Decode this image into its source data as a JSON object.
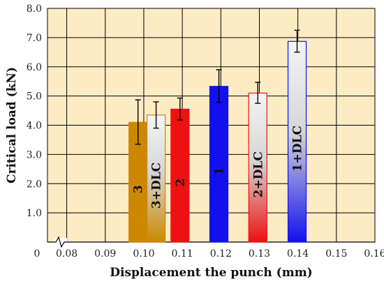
{
  "chart_data": {
    "type": "bar",
    "title": "",
    "xlabel": "Displacement the punch (mm)",
    "ylabel": "Critical load (kN)",
    "ylim": [
      0,
      8.0
    ],
    "xlim": [
      0.075,
      0.16
    ],
    "grid": true,
    "x_origin_label": "0",
    "x_ticks": [
      "0.08",
      "0.09",
      "0.10",
      "0.11",
      "0.12",
      "0.13",
      "0.14",
      "0.15",
      "0.16"
    ],
    "y_ticks": [
      "1.0",
      "2.0",
      "3.0",
      "4.0",
      "5.0",
      "6.0",
      "7.0",
      "8.0"
    ],
    "categories": [
      "3",
      "3+DLC",
      "2",
      "1",
      "2+DLC",
      "1+DLC"
    ],
    "bars": [
      {
        "label": "3",
        "x": 0.0985,
        "value": 4.1,
        "err_low": 3.35,
        "err_high": 4.87,
        "style": "solid",
        "color": "#cc8800"
      },
      {
        "label": "3+DLC",
        "x": 0.1032,
        "value": 4.35,
        "err_low": 3.9,
        "err_high": 4.8,
        "style": "gradient",
        "color": "#cc8800"
      },
      {
        "label": "2",
        "x": 0.1094,
        "value": 4.55,
        "err_low": 4.18,
        "err_high": 4.93,
        "style": "solid",
        "color": "#ee1111"
      },
      {
        "label": "1",
        "x": 0.1195,
        "value": 5.33,
        "err_low": 4.78,
        "err_high": 5.9,
        "style": "solid",
        "color": "#1111ee"
      },
      {
        "label": "2+DLC",
        "x": 0.1296,
        "value": 5.1,
        "err_low": 4.75,
        "err_high": 5.47,
        "style": "gradient",
        "color": "#ee1111"
      },
      {
        "label": "1+DLC",
        "x": 0.1398,
        "value": 6.87,
        "err_low": 6.5,
        "err_high": 7.25,
        "style": "gradient",
        "color": "#1111ee"
      }
    ],
    "colors": {
      "plot_background": "#fdebc4",
      "grid": "#000000",
      "error_bar": "#000000"
    }
  }
}
